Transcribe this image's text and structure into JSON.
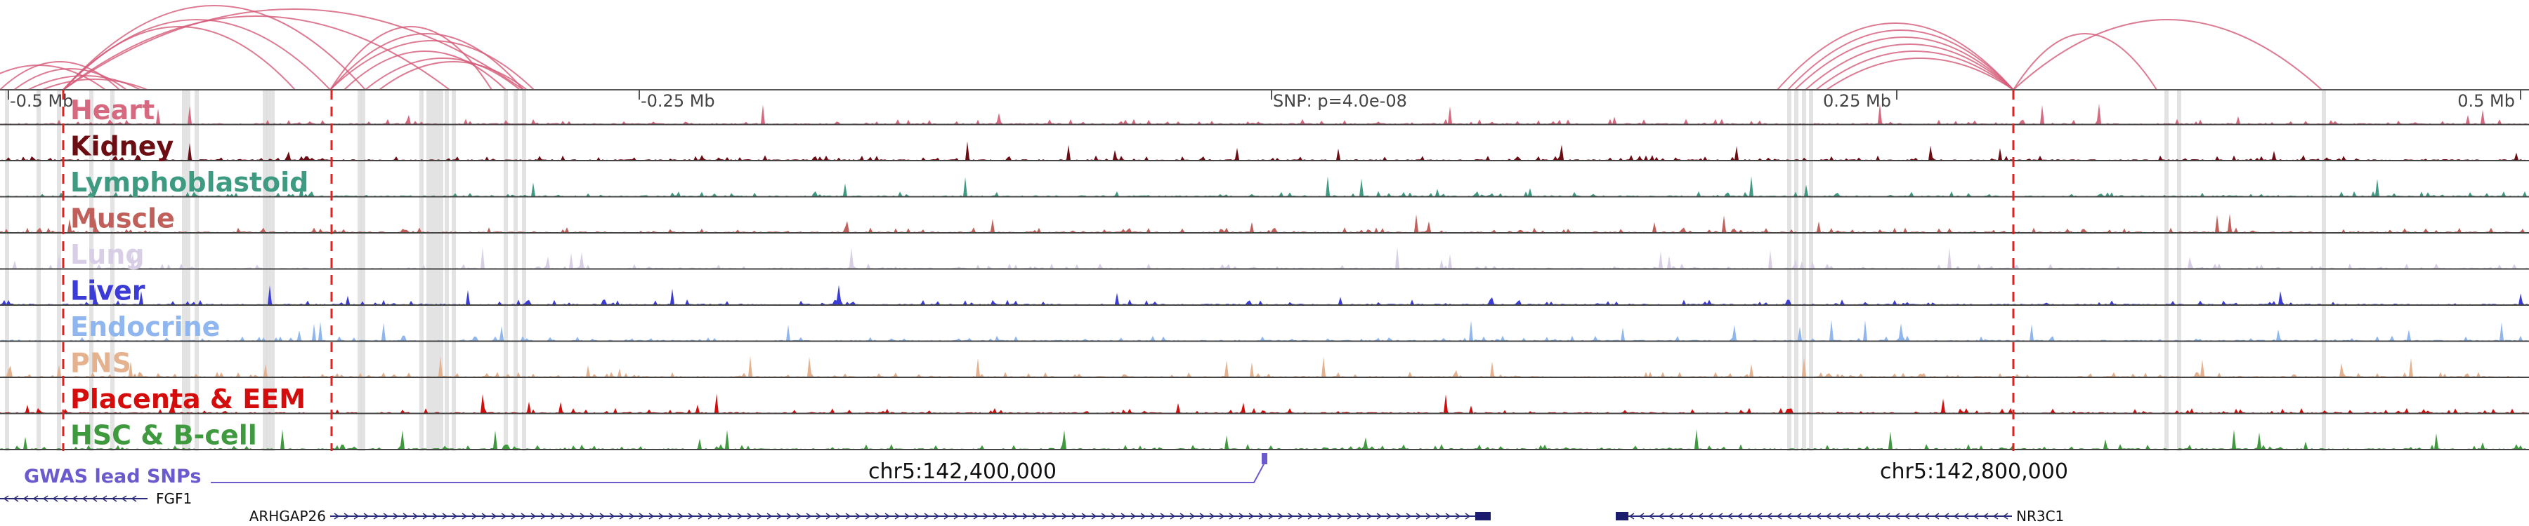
{
  "scale": {
    "labels": [
      {
        "text": "-0.5 Mb",
        "anchor": "start"
      },
      {
        "text": "-0.25 Mb",
        "anchor": "start"
      },
      {
        "text": "SNP: p=4.0e-08",
        "anchor": "start"
      },
      {
        "text": "0.25 Mb",
        "anchor": "end"
      },
      {
        "text": "0.5 Mb",
        "anchor": "end"
      }
    ]
  },
  "tracks": [
    {
      "label": "Heart",
      "color": "#d6687f"
    },
    {
      "label": "Kidney",
      "color": "#6b0d12"
    },
    {
      "label": "Lymphoblastoid",
      "color": "#3f9a82"
    },
    {
      "label": "Muscle",
      "color": "#c1605a"
    },
    {
      "label": "Lung",
      "color": "#d8cfe6"
    },
    {
      "label": "Liver",
      "color": "#3b3bd6"
    },
    {
      "label": "Endocrine",
      "color": "#8fb6ee"
    },
    {
      "label": "PNS",
      "color": "#e4b28f"
    },
    {
      "label": "Placenta & EEM",
      "color": "#d40c0c"
    },
    {
      "label": "HSC & B-cell",
      "color": "#3f9a3f"
    }
  ],
  "gwas": {
    "label": "GWAS lead SNPs",
    "color": "#6a5acd"
  },
  "coordinates": [
    {
      "text": "chr5:142,400,000"
    },
    {
      "text": "chr5:142,800,000"
    }
  ],
  "genes": [
    {
      "name": "FGF1",
      "strand": "-",
      "label_side": "right"
    },
    {
      "name": "ARHGAP26",
      "strand": "+",
      "label_side": "left"
    },
    {
      "name": "NR3C1",
      "strand": "-",
      "label_side": "right"
    }
  ],
  "colors": {
    "arc": "#d45a78",
    "snp_line": "#dd2222",
    "highlight": "#d9d9d9",
    "axis": "#555555"
  }
}
